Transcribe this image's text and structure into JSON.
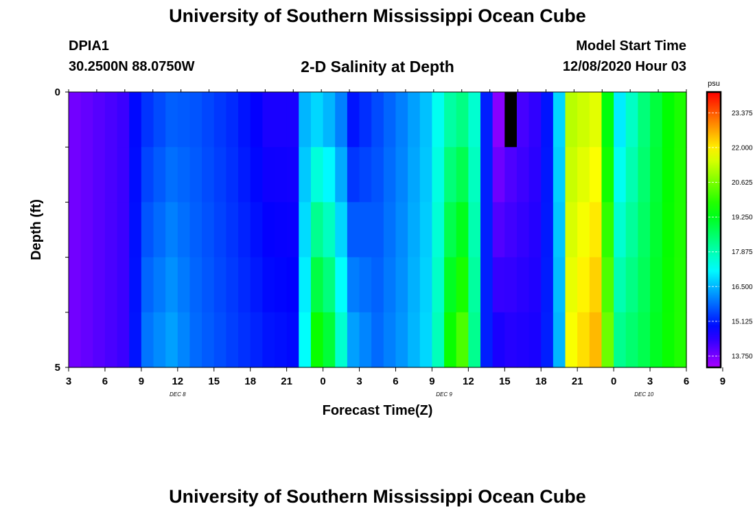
{
  "header": {
    "title": "University of Southern Mississippi Ocean Cube",
    "station_id": "DPIA1",
    "coords": "30.2500N 88.0750W",
    "chart_title": "2-D Salinity at Depth",
    "model_start_label": "Model Start Time",
    "model_start_value": "12/08/2020 Hour 03"
  },
  "footer": {
    "title": "University of Southern Mississippi Ocean Cube"
  },
  "chart_data": {
    "type": "heatmap",
    "title": "2-D Salinity at Depth",
    "xlabel": "Forecast Time(Z)",
    "ylabel": "Depth (ft)",
    "x_start_hour": 3,
    "x_end_hour": 54,
    "x_step_hours": 3,
    "x_tick_labels": [
      "3",
      "6",
      "9",
      "12",
      "15",
      "18",
      "21",
      "0",
      "3",
      "6",
      "9",
      "12",
      "15",
      "18",
      "21",
      "0",
      "3",
      "6",
      "9"
    ],
    "day_labels": [
      {
        "label": "DEC 8",
        "hour": 12
      },
      {
        "label": "DEC 9",
        "hour": 34
      },
      {
        "label": "DEC 10",
        "hour": 50.5
      }
    ],
    "y_ticks": [
      0,
      5
    ],
    "ylim": [
      0,
      5
    ],
    "depth_layers": [
      0.5,
      1.5,
      2.5,
      3.5,
      4.5
    ],
    "unit": "psu",
    "colorbar_ticks": [
      23.375,
      22.0,
      20.625,
      19.25,
      17.875,
      16.5,
      15.125,
      13.75
    ],
    "colorbar_range": [
      13.3,
      24.2
    ],
    "missing_value": null,
    "hourly_salinity_profile": [
      {
        "hour": 3,
        "surface": 13.8,
        "bottom": 13.8
      },
      {
        "hour": 7,
        "surface": 14.3,
        "bottom": 14.3
      },
      {
        "hour": 8,
        "surface": 14.9,
        "bottom": 15.0
      },
      {
        "hour": 9,
        "surface": 15.3,
        "bottom": 15.9
      },
      {
        "hour": 11,
        "surface": 15.7,
        "bottom": 16.3
      },
      {
        "hour": 13,
        "surface": 15.6,
        "bottom": 15.8
      },
      {
        "hour": 16,
        "surface": 15.2,
        "bottom": 15.4
      },
      {
        "hour": 19,
        "surface": 14.6,
        "bottom": 15.0
      },
      {
        "hour": 21,
        "surface": 14.6,
        "bottom": 14.9
      },
      {
        "hour": 22,
        "surface": 16.5,
        "bottom": 17.2
      },
      {
        "hour": 23,
        "surface": 16.8,
        "bottom": 19.6
      },
      {
        "hour": 24,
        "surface": 16.5,
        "bottom": 19.0
      },
      {
        "hour": 25,
        "surface": 16.0,
        "bottom": 17.6
      },
      {
        "hour": 26,
        "surface": 15.0,
        "bottom": 16.3
      },
      {
        "hour": 28,
        "surface": 15.5,
        "bottom": 15.8
      },
      {
        "hour": 30,
        "surface": 16.0,
        "bottom": 16.2
      },
      {
        "hour": 32,
        "surface": 16.6,
        "bottom": 16.8
      },
      {
        "hour": 33,
        "surface": 17.3,
        "bottom": 17.8
      },
      {
        "hour": 34,
        "surface": 18.0,
        "bottom": 19.6
      },
      {
        "hour": 35,
        "surface": 18.3,
        "bottom": 20.2
      },
      {
        "hour": 36,
        "surface": 17.6,
        "bottom": 18.2
      },
      {
        "hour": 37,
        "surface": 15.1,
        "bottom": 15.1
      },
      {
        "hour": 38,
        "surface": 13.6,
        "bottom": 14.6
      },
      {
        "hour": 39,
        "surface": 14.0,
        "bottom": 14.5
      },
      {
        "hour": 41,
        "surface": 14.4,
        "bottom": 14.6
      },
      {
        "hour": 42,
        "surface": 15.0,
        "bottom": 15.1
      },
      {
        "hour": 43,
        "surface": 16.8,
        "bottom": 16.5
      },
      {
        "hour": 44,
        "surface": 21.2,
        "bottom": 21.8
      },
      {
        "hour": 46,
        "surface": 21.6,
        "bottom": 22.5
      },
      {
        "hour": 47,
        "surface": 19.4,
        "bottom": 20.5
      },
      {
        "hour": 48,
        "surface": 17.0,
        "bottom": 18.2
      },
      {
        "hour": 50,
        "surface": 18.4,
        "bottom": 18.8
      },
      {
        "hour": 52,
        "surface": 19.5,
        "bottom": 19.6
      },
      {
        "hour": 54,
        "surface": 20.0,
        "bottom": 20.0
      }
    ],
    "missing_cells": [
      {
        "hour": 39,
        "layer": 0
      }
    ]
  }
}
